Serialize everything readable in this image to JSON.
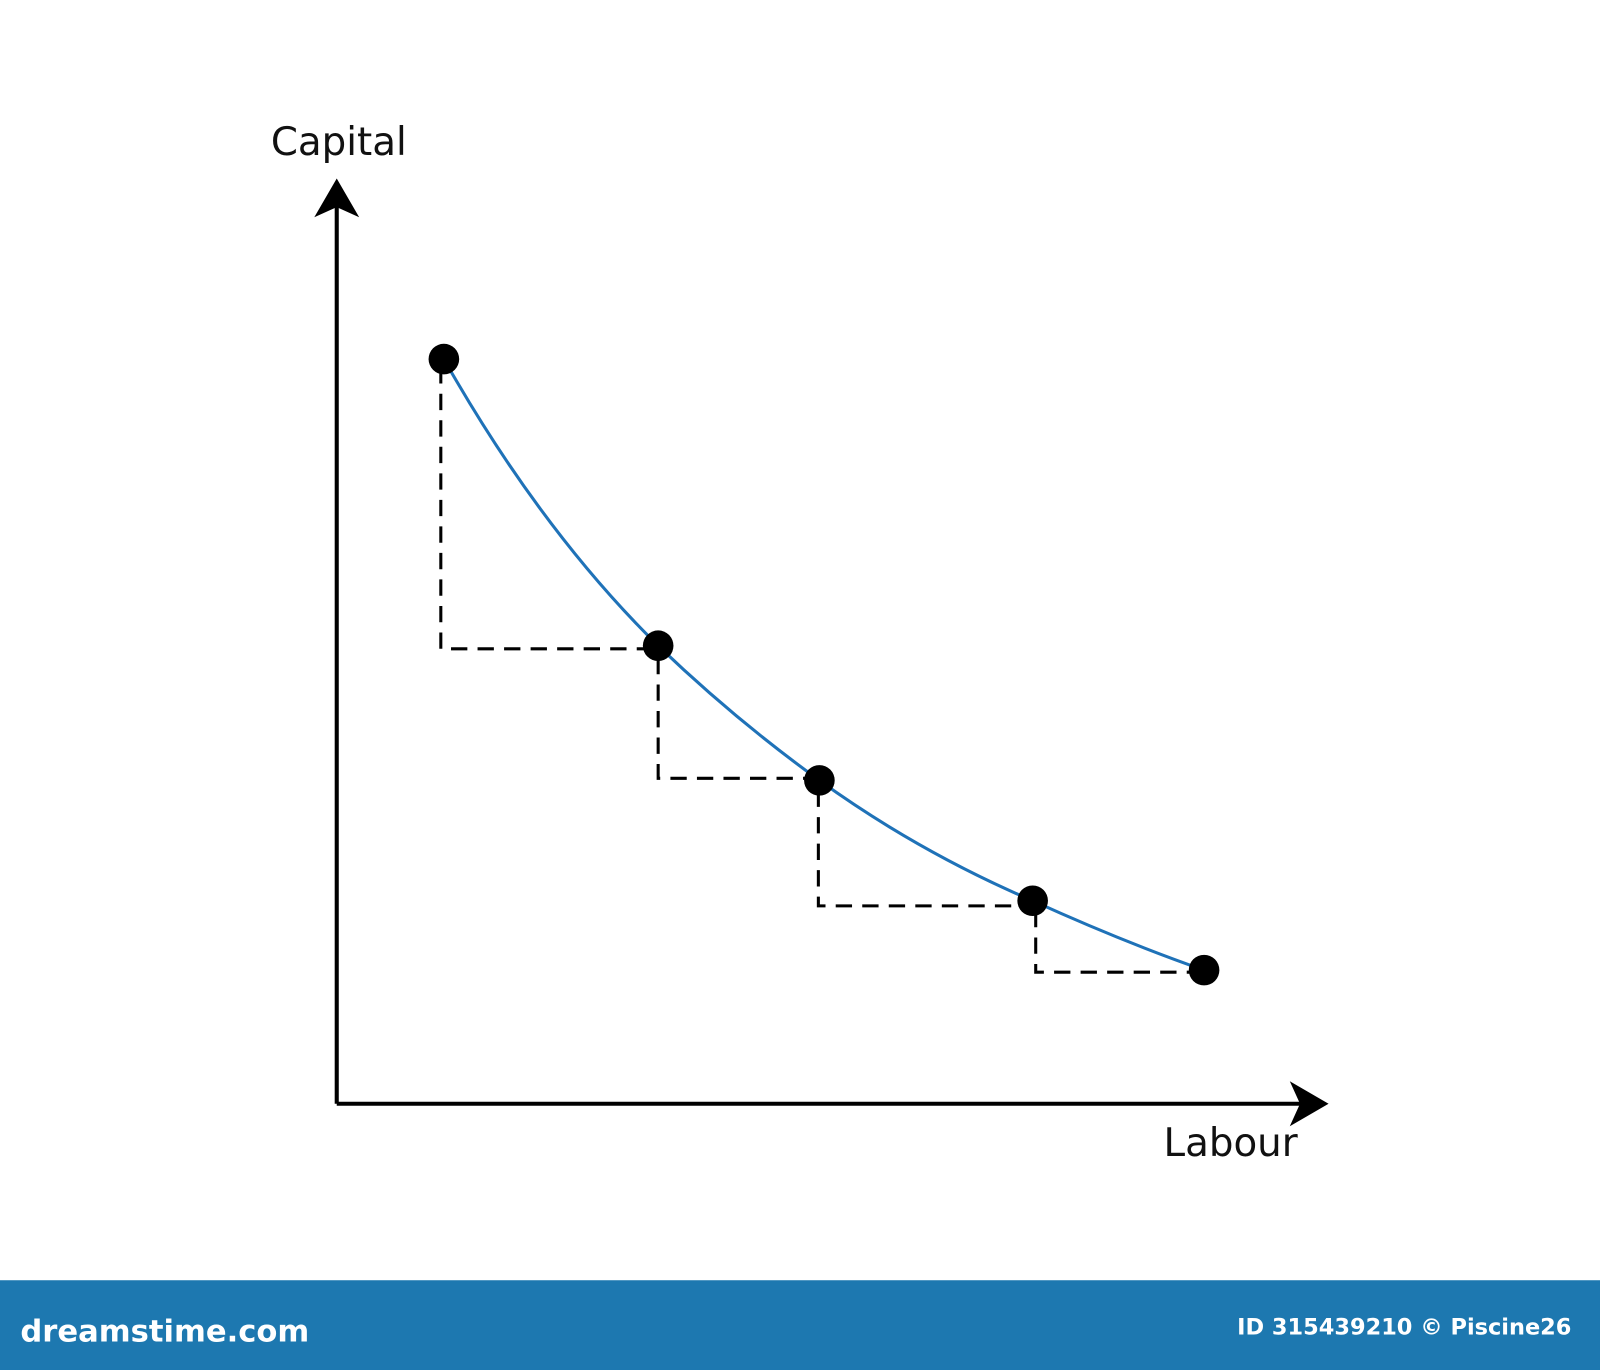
{
  "axes": {
    "y_label": "Capital",
    "x_label": "Labour"
  },
  "footer": {
    "brand": "dreamstime.com",
    "credit": "ID 315439210 © Piscine26"
  }
}
